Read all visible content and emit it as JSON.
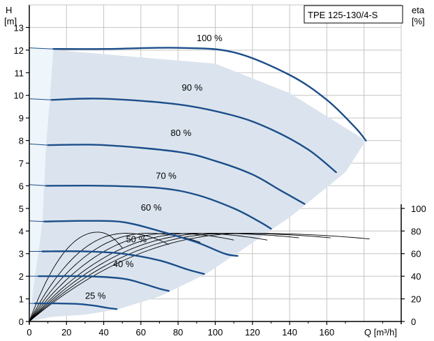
{
  "chart_data": {
    "type": "line",
    "title": "TPE 125-130/4-S",
    "ylabel_left": [
      "H",
      "[m]"
    ],
    "ylabel_right": [
      "eta",
      "[%]"
    ],
    "xlabel": "Q [m³/h]",
    "xlim": [
      0,
      200
    ],
    "ylim": [
      0,
      14
    ],
    "x_ticks": [
      0,
      20,
      40,
      60,
      80,
      100,
      120,
      140,
      160
    ],
    "y_ticks": [
      0,
      1,
      2,
      3,
      4,
      5,
      6,
      7,
      8,
      9,
      10,
      11,
      12,
      13
    ],
    "eta_axis": {
      "ticks": [
        0,
        20,
        40,
        60,
        80,
        100
      ],
      "min": 0,
      "max": 100,
      "bottom_H": 0,
      "top_H": 5
    },
    "grid": true,
    "colors": {
      "curve": "#1c4e8a",
      "area": "#dbe4ee",
      "area_light": "#eef5fb",
      "eta": "#000000",
      "grid": "#c4c4c4"
    },
    "operating_area": {
      "outer": [
        [
          0,
          12.1
        ],
        [
          15,
          12.0
        ],
        [
          100,
          11.4
        ],
        [
          140,
          10.1
        ],
        [
          181,
          8.0
        ],
        [
          170,
          6.6
        ],
        [
          140,
          4.6
        ],
        [
          115,
          3.2
        ],
        [
          95,
          2.1
        ],
        [
          70,
          1.1
        ],
        [
          48,
          0.55
        ],
        [
          30,
          0.3
        ],
        [
          12,
          0.2
        ],
        [
          0,
          0
        ]
      ],
      "light_left": [
        [
          0,
          12.1
        ],
        [
          13,
          12.05
        ],
        [
          11,
          9.8
        ],
        [
          9,
          7.8
        ],
        [
          8,
          6.0
        ],
        [
          7,
          4.4
        ],
        [
          5,
          3.1
        ],
        [
          3,
          2.0
        ],
        [
          2,
          1.3
        ],
        [
          0,
          0
        ]
      ]
    },
    "series": [
      {
        "name": "100 %",
        "label_at": [
          90,
          12.4
        ],
        "points": [
          [
            0,
            12.1
          ],
          [
            13,
            12.05
          ],
          [
            40,
            12.05
          ],
          [
            80,
            12.1
          ],
          [
            110,
            11.9
          ],
          [
            140,
            10.9
          ],
          [
            160,
            9.8
          ],
          [
            175,
            8.6
          ],
          [
            181,
            8.0
          ]
        ]
      },
      {
        "name": "90 %",
        "label_at": [
          82,
          10.2
        ],
        "points": [
          [
            0,
            9.85
          ],
          [
            12,
            9.8
          ],
          [
            40,
            9.85
          ],
          [
            80,
            9.6
          ],
          [
            110,
            9.1
          ],
          [
            130,
            8.5
          ],
          [
            150,
            7.6
          ],
          [
            165,
            6.6
          ]
        ]
      },
      {
        "name": "80 %",
        "label_at": [
          76,
          8.2
        ],
        "points": [
          [
            0,
            7.85
          ],
          [
            10,
            7.8
          ],
          [
            40,
            7.8
          ],
          [
            80,
            7.5
          ],
          [
            100,
            7.1
          ],
          [
            120,
            6.5
          ],
          [
            135,
            5.8
          ],
          [
            148,
            5.2
          ]
        ]
      },
      {
        "name": "70 %",
        "label_at": [
          68,
          6.3
        ],
        "points": [
          [
            0,
            6.05
          ],
          [
            9,
            6.0
          ],
          [
            40,
            6.0
          ],
          [
            70,
            5.9
          ],
          [
            90,
            5.6
          ],
          [
            110,
            5.0
          ],
          [
            124,
            4.4
          ],
          [
            130,
            4.1
          ]
        ]
      },
      {
        "name": "60 %",
        "label_at": [
          60,
          4.9
        ],
        "points": [
          [
            0,
            4.45
          ],
          [
            8,
            4.42
          ],
          [
            30,
            4.45
          ],
          [
            50,
            4.4
          ],
          [
            70,
            4.0
          ],
          [
            90,
            3.5
          ],
          [
            105,
            3.0
          ],
          [
            112,
            2.9
          ]
        ]
      },
      {
        "name": "50 %",
        "label_at": [
          52,
          3.5
        ],
        "points": [
          [
            0,
            3.1
          ],
          [
            7,
            3.1
          ],
          [
            30,
            3.1
          ],
          [
            50,
            3.0
          ],
          [
            70,
            2.7
          ],
          [
            85,
            2.3
          ],
          [
            94,
            2.1
          ]
        ]
      },
      {
        "name": "40 %",
        "label_at": [
          45,
          2.4
        ],
        "points": [
          [
            0,
            2.0
          ],
          [
            5,
            2.0
          ],
          [
            30,
            2.0
          ],
          [
            50,
            1.9
          ],
          [
            60,
            1.7
          ],
          [
            70,
            1.45
          ],
          [
            75,
            1.35
          ]
        ]
      },
      {
        "name": "25 %",
        "label_at": [
          30,
          1.0
        ],
        "points": [
          [
            0,
            0.8
          ],
          [
            3,
            0.8
          ],
          [
            15,
            0.8
          ],
          [
            25,
            0.78
          ],
          [
            35,
            0.7
          ],
          [
            42,
            0.6
          ],
          [
            47,
            0.55
          ]
        ]
      }
    ],
    "efficiency_curves": [
      {
        "peak_q": 37,
        "peak_eta": 79,
        "end_q": 50,
        "end_eta": 65
      },
      {
        "peak_q": 52,
        "peak_eta": 78,
        "end_q": 75,
        "end_eta": 68
      },
      {
        "peak_q": 64,
        "peak_eta": 78,
        "end_q": 92,
        "end_eta": 70
      },
      {
        "peak_q": 76,
        "peak_eta": 78,
        "end_q": 110,
        "end_eta": 72
      },
      {
        "peak_q": 88,
        "peak_eta": 78,
        "end_q": 128,
        "end_eta": 72
      },
      {
        "peak_q": 98,
        "peak_eta": 78,
        "end_q": 145,
        "end_eta": 74
      },
      {
        "peak_q": 108,
        "peak_eta": 78,
        "end_q": 162,
        "end_eta": 74
      },
      {
        "peak_q": 118,
        "peak_eta": 78,
        "end_q": 183,
        "end_eta": 73
      }
    ]
  }
}
